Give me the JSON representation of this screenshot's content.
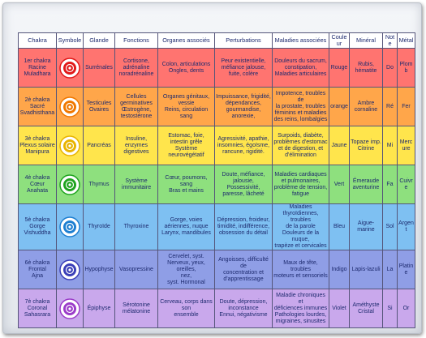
{
  "headers": [
    "Chakra",
    "Symbole",
    "Glande",
    "Fonctions",
    "Organes associés",
    "Perturbations",
    "Maladies associées",
    "Couleur",
    "Minéral",
    "Note",
    "Métal"
  ],
  "rows": [
    {
      "bg": "#ff7470",
      "icon": "root-chakra-icon",
      "iconColor": "#e11a1a",
      "chakra": "1er chakra\nRacine\nMuladhara",
      "glande": "Surrénales",
      "fonctions": "Cortisone,\nadrénaline\nnoradrénaline",
      "organes": "Colon, articulations\nOngles, dents",
      "perturbations": "Peur existentielle,\nméfiance jalouse,\nfuite, colère",
      "maladies": "Douleurs du sacrum,\nconstipation,\nMaladies articulaires",
      "couleur": "Rouge",
      "mineral": "Rubis,\nhématite",
      "note": "Do",
      "metal": "Plomb"
    },
    {
      "bg": "#ffa64a",
      "icon": "sacral-chakra-icon",
      "iconColor": "#f07800",
      "chakra": "2è chakra\nSacré\nSvadhisthana",
      "glande": "Testicules\nOvaires",
      "fonctions": "Cellules\ngerminatives\nŒstrogène,\ntestostérone",
      "organes": "Organes génitaux,\nvessie\nReins, circulation sang",
      "perturbations": "Impuissance, frigidité,\ndépendances,\ngourmandise,\nanorexie,",
      "maladies": "Impotence, troubles de\nla prostate, troubles\nféminins et maladies\ndes reins, lombalgies",
      "couleur": "orange",
      "mineral": "Ambre\ncornaline",
      "note": "Ré",
      "metal": "Fer"
    },
    {
      "bg": "#ffe54c",
      "icon": "solar-plexus-chakra-icon",
      "iconColor": "#e8b400",
      "chakra": "3è chakra\nPlexus solaire\nManipura",
      "glande": "Pancréas",
      "fonctions": "Insuline,\nenzymes\ndigestives",
      "organes": "Estomac, foie,\nintestin grêle\nSystème\nneurovégétatif",
      "perturbations": "Agressivité, apathie,\ninsomnies, égoïsme,\nrancune, rigidité.",
      "maladies": "Surpoids, diabète,\nproblèmes d'estomac\net de digestion, et\nd'élimination",
      "couleur": "Jaune",
      "mineral": "Topaze imp.\nCitrine",
      "note": "Mi",
      "metal": "Mercure"
    },
    {
      "bg": "#8ee07e",
      "icon": "heart-chakra-icon",
      "iconColor": "#1fa31f",
      "chakra": "4è chakra\nCœur\nAnahata",
      "glande": "Thymus",
      "fonctions": "Système\nimmunitaire",
      "organes": "Cœur, poumons, sang\nBras et mains",
      "perturbations": "Doute, méfiance,\njalousie, Possessivité,\nparesse, lâcheté",
      "maladies": "Maladies cardiaques\net pulmonaires,\nproblème de tension,\nfatigue",
      "couleur": "Vert",
      "mineral": "Émeraude\naventurine",
      "note": "Fa",
      "metal": "Cuivre"
    },
    {
      "bg": "#7ec0f2",
      "icon": "throat-chakra-icon",
      "iconColor": "#1e7fd1",
      "chakra": "5è chakra\nGorge\nVishuddha",
      "glande": "Thyroïde",
      "fonctions": "Thyroxine",
      "organes": "Gorge, voies\naériennes, nuque\nLarynx, mandibules",
      "perturbations": "Dépression, froideur,\ntimidité, indifférence,\nobsession du détail",
      "maladies": "Maladies\nthyroïdiennes, troubles\nde la parole\nDouleurs de la nuque,\ntrapèze et cervicales",
      "couleur": "Bleu",
      "mineral": "Aigue-marine",
      "note": "Sol",
      "metal": "Argent"
    },
    {
      "bg": "#8f9ee6",
      "icon": "third-eye-chakra-icon",
      "iconColor": "#3b3fb8",
      "chakra": "6è chakra\nFrontal\nAjna",
      "glande": "Hypophyse",
      "fonctions": "Vasopressine",
      "organes": "Cervelet, syst.\nNerveux, yeux, oreilles,\nnez,\nsyst. Hormonal",
      "perturbations": "Angoisses, difficulté de\nconcentration et\nd'apprentissage",
      "maladies": "Maux de tête, troubles\nmoteurs et sensoriels",
      "couleur": "Indigo",
      "mineral": "Lapis-lazuli",
      "note": "La",
      "metal": "Platine"
    },
    {
      "bg": "#c9a8ec",
      "icon": "crown-chakra-icon",
      "iconColor": "#9b3cc9",
      "chakra": "7è chakra\nCoronal\nSahasrara",
      "glande": "Épiphyse",
      "fonctions": "Sérotonine\nmélatonine",
      "organes": "Cerveau, corps dans\nson\nensemble",
      "perturbations": "Doute, dépression,\ninconstance\nEnnui, négativisme",
      "maladies": "Maladie chroniques et\ndéficiences immunes\nPathologies lourdes,\nmigraines, sinusites",
      "couleur": "Violet",
      "mineral": "Améthyste\nCristal",
      "note": "Si",
      "metal": "Or"
    }
  ]
}
